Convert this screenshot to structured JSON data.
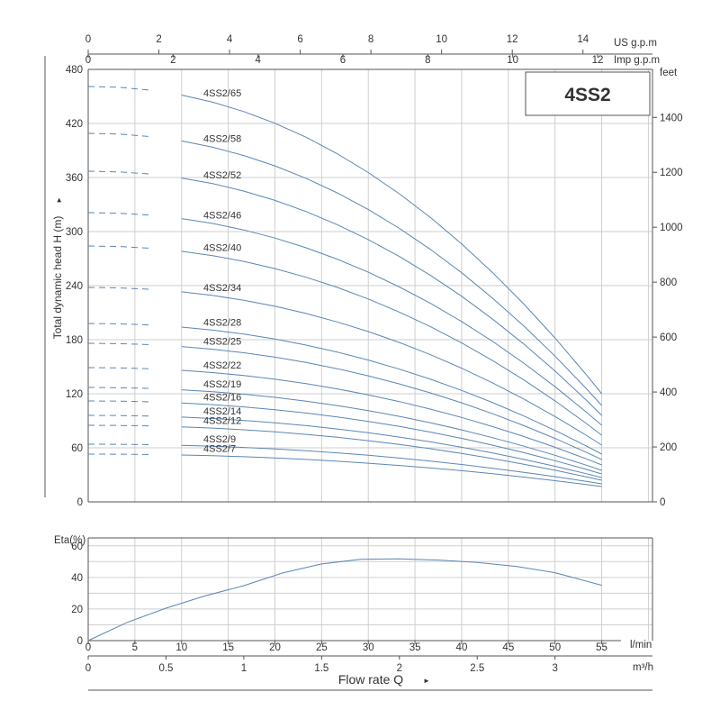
{
  "chart_data": [
    {
      "type": "line",
      "title": "4SS2",
      "ylabel": "Total dynamic head H (m)",
      "ylabel_arrow": "►",
      "ylabel_right": "feet",
      "xlabel": "Flow rate Q",
      "xlabel_arrow": "►",
      "x_unit": "m³/h",
      "x_unit_lmin": "l/min",
      "x_unit_usgpm": "US g.p.m",
      "x_unit_impgpm": "Imp g.p.m",
      "xlim": [
        0,
        3.3
      ],
      "ylim": [
        0,
        480
      ],
      "yticks": [
        "0",
        "60",
        "120",
        "180",
        "240",
        "300",
        "360",
        "420",
        "480"
      ],
      "yticks_feet": [
        "0",
        "200",
        "400",
        "600",
        "800",
        "1000",
        "1200",
        "1400"
      ],
      "xticks_m3h": [
        "0",
        "0.5",
        "1",
        "1.5",
        "2",
        "2.5",
        "3"
      ],
      "xticks_usgpm": [
        "0",
        "2",
        "4",
        "6",
        "8",
        "10",
        "12",
        "14"
      ],
      "xticks_impgpm": [
        "0",
        "2",
        "4",
        "6",
        "8",
        "10",
        "12"
      ],
      "curve_x": [
        0,
        0.2,
        0.4,
        0.6,
        0.8,
        1.0,
        1.2,
        1.4,
        1.6,
        1.8,
        2.0,
        2.2,
        2.4,
        2.6,
        2.8,
        3.0,
        3.2,
        3.3
      ],
      "dashed_until_x": 0.5,
      "series": [
        {
          "name": "4SS2/65",
          "head_at_0": 461,
          "head_at_max": 120
        },
        {
          "name": "4SS2/58",
          "head_at_0": 409,
          "head_at_max": 107
        },
        {
          "name": "4SS2/52",
          "head_at_0": 367,
          "head_at_max": 96
        },
        {
          "name": "4SS2/46",
          "head_at_0": 321,
          "head_at_max": 85
        },
        {
          "name": "4SS2/40",
          "head_at_0": 284,
          "head_at_max": 74
        },
        {
          "name": "4SS2/34",
          "head_at_0": 238,
          "head_at_max": 63
        },
        {
          "name": "4SS2/28",
          "head_at_0": 198,
          "head_at_max": 53
        },
        {
          "name": "4SS2/25",
          "head_at_0": 176,
          "head_at_max": 47
        },
        {
          "name": "4SS2/22",
          "head_at_0": 149,
          "head_at_max": 41
        },
        {
          "name": "4SS2/19",
          "head_at_0": 127,
          "head_at_max": 35
        },
        {
          "name": "4SS2/16",
          "head_at_0": 112,
          "head_at_max": 31
        },
        {
          "name": "4SS2/14",
          "head_at_0": 96,
          "head_at_max": 27
        },
        {
          "name": "4SS2/12",
          "head_at_0": 85,
          "head_at_max": 24
        },
        {
          "name": "4SS2/9",
          "head_at_0": 64,
          "head_at_max": 20
        },
        {
          "name": "4SS2/7",
          "head_at_0": 53,
          "head_at_max": 17
        }
      ]
    },
    {
      "type": "line",
      "ylabel": "Eta(%)",
      "xlabel": "",
      "xlim": [
        0,
        3.3
      ],
      "ylim": [
        0,
        65
      ],
      "yticks": [
        "0",
        "20",
        "40",
        "60"
      ],
      "xticks_lmin": [
        "0",
        "5",
        "10",
        "15",
        "20",
        "25",
        "30",
        "35",
        "40",
        "45",
        "50",
        "55"
      ],
      "series": [
        {
          "name": "",
          "x": [
            0,
            0.25,
            0.5,
            0.75,
            1.0,
            1.25,
            1.5,
            1.75,
            2.0,
            2.25,
            2.5,
            2.75,
            3.0,
            3.3
          ],
          "values": [
            0,
            11.5,
            20.5,
            28.3,
            34.8,
            42.8,
            48.5,
            51.5,
            51.8,
            51,
            49.5,
            47,
            43,
            35
          ]
        }
      ]
    }
  ]
}
